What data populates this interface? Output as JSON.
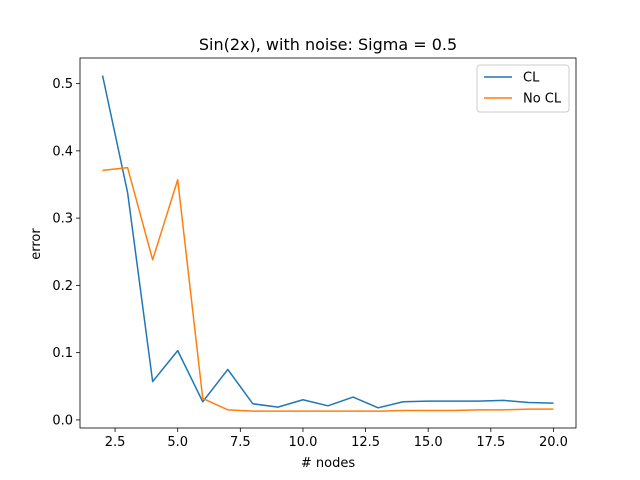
{
  "chart_data": {
    "type": "line",
    "title": "Sin(2x), with noise: Sigma = 0.5",
    "xlabel": "# nodes",
    "ylabel": "error",
    "xlim": [
      1.1,
      20.9
    ],
    "ylim": [
      -0.012,
      0.538
    ],
    "xticks": [
      2.5,
      5.0,
      7.5,
      10.0,
      12.5,
      15.0,
      17.5,
      20.0
    ],
    "xtick_labels": [
      "2.5",
      "5.0",
      "7.5",
      "10.0",
      "12.5",
      "15.0",
      "17.5",
      "20.0"
    ],
    "yticks": [
      0.0,
      0.1,
      0.2,
      0.3,
      0.4,
      0.5
    ],
    "ytick_labels": [
      "0.0",
      "0.1",
      "0.2",
      "0.3",
      "0.4",
      "0.5"
    ],
    "grid": false,
    "legend_position": "top-right",
    "x": [
      2,
      3,
      4,
      5,
      6,
      7,
      8,
      9,
      10,
      11,
      12,
      13,
      14,
      15,
      16,
      17,
      18,
      19,
      20
    ],
    "series": [
      {
        "name": "CL",
        "color": "#1f77b4",
        "values": [
          0.512,
          0.338,
          0.057,
          0.103,
          0.027,
          0.075,
          0.024,
          0.019,
          0.03,
          0.021,
          0.034,
          0.018,
          0.027,
          0.028,
          0.028,
          0.028,
          0.029,
          0.026,
          0.025
        ]
      },
      {
        "name": "No CL",
        "color": "#ff7f0e",
        "values": [
          0.371,
          0.375,
          0.238,
          0.357,
          0.032,
          0.015,
          0.013,
          0.013,
          0.013,
          0.013,
          0.013,
          0.013,
          0.014,
          0.014,
          0.014,
          0.015,
          0.015,
          0.016,
          0.016
        ]
      }
    ]
  }
}
